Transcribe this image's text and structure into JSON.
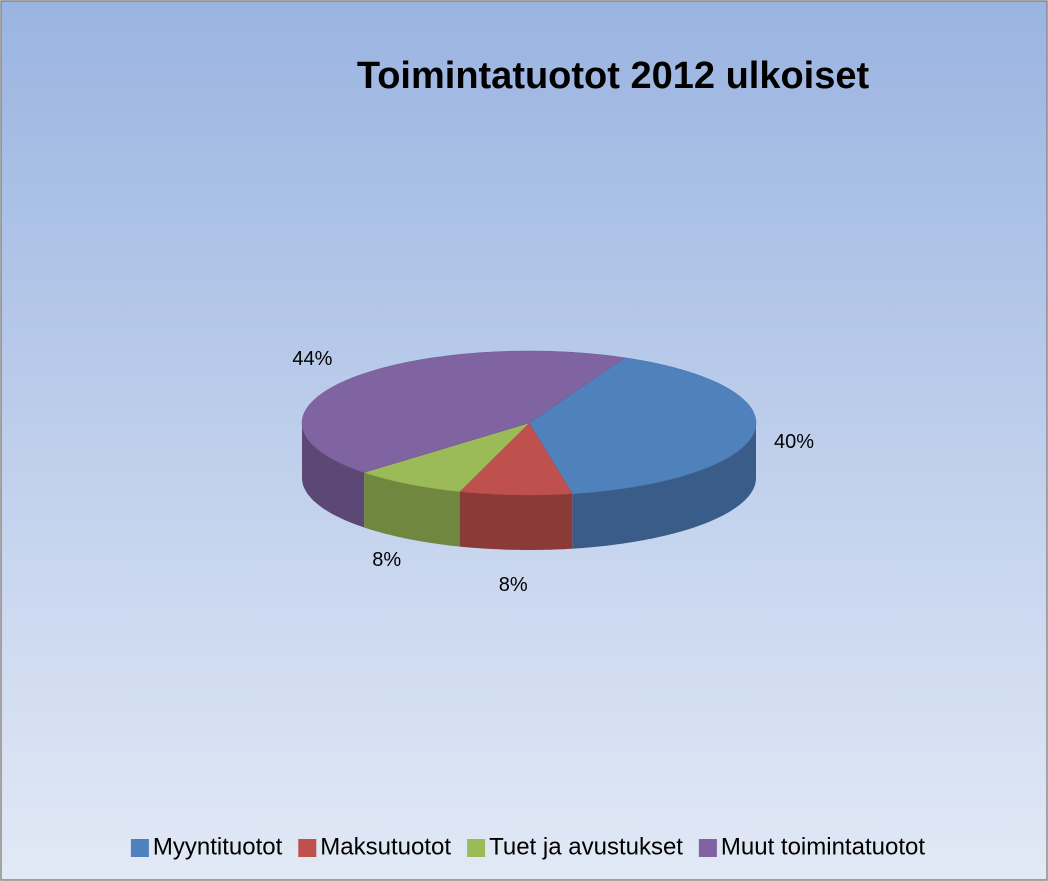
{
  "chart_data": {
    "type": "pie",
    "title": "Toimintatuotot 2012 ulkoiset",
    "categories": [
      "Myyntituotot",
      "Maksutuotot",
      "Tuet ja avustukset",
      "Muut toimintatuotot"
    ],
    "values": [
      40,
      8,
      8,
      44
    ],
    "value_labels": [
      "40%",
      "8%",
      "8%",
      "44%"
    ],
    "colors": [
      "#4f81bd",
      "#c0504d",
      "#9bbb59",
      "#8064a2"
    ],
    "legend": "bottom"
  }
}
